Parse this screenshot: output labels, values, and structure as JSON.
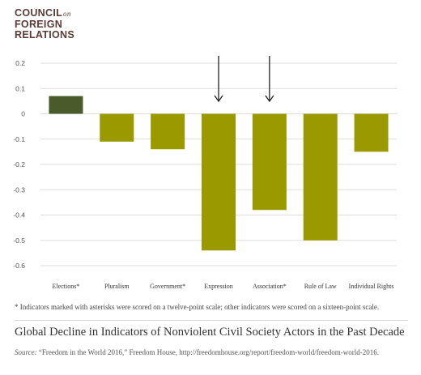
{
  "logo": {
    "line1": "Council",
    "line1_suffix": "on",
    "line2": "Foreign",
    "line3": "Relations"
  },
  "chart_data": {
    "type": "bar",
    "categories": [
      "Elections*",
      "Pluralism",
      "Government*",
      "Expression",
      "Association*",
      "Rule of Law",
      "Individual Rights"
    ],
    "values": [
      0.07,
      -0.11,
      -0.14,
      -0.54,
      -0.38,
      -0.5,
      -0.15
    ],
    "ylim": [
      -0.6,
      0.2
    ],
    "yticks": [
      0.2,
      0.1,
      0,
      -0.1,
      -0.2,
      -0.3,
      -0.4,
      -0.5,
      -0.6
    ],
    "ytick_labels": [
      "0.2",
      "0.1",
      "0",
      "-0.1",
      "-0.2",
      "-0.3",
      "-0.4",
      "-0.5",
      "-0.6"
    ],
    "grid": true,
    "arrows_on": [
      "Expression",
      "Association*"
    ],
    "colors": {
      "positive": "#4a5a2a",
      "negative": "#9a9a00",
      "grid": "#dddddd",
      "arrow": "#222222"
    }
  },
  "footnote": "* Indicators marked with asterisks were scored on a twelve-point scale; other indicators were scored on a sixteen-point scale.",
  "caption": {
    "title": "Global Decline in Indicators of Nonviolent Civil Society Actors in the Past Decade",
    "source_label": "Source:",
    "source_text": " “Freedom in the World 2016,” Freedom House, http://freedomhouse.org/report/freedom-world/freedom-world-2016."
  }
}
